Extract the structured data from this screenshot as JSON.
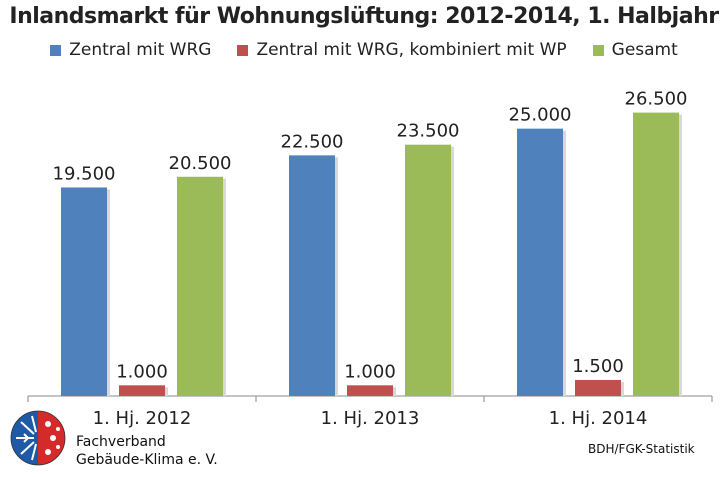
{
  "chart_data": {
    "type": "bar",
    "title": "Inlandsmarkt für Wohnungslüftung: 2012-2014, 1. Halbjahr",
    "categories": [
      "1. Hj. 2012",
      "1. Hj. 2013",
      "1. Hj. 2014"
    ],
    "series": [
      {
        "name": "Zentral mit WRG",
        "color": "#4F81BD",
        "values": [
          19500,
          22500,
          25000
        ],
        "labels": [
          "19.500",
          "22.500",
          "25.000"
        ]
      },
      {
        "name": "Zentral mit WRG, kombiniert mit WP",
        "color": "#C0504D",
        "values": [
          1000,
          1000,
          1500
        ],
        "labels": [
          "1.000",
          "1.000",
          "1.500"
        ]
      },
      {
        "name": "Gesamt",
        "color": "#9BBB59",
        "values": [
          20500,
          23500,
          26500
        ],
        "labels": [
          "20.500",
          "23.500",
          "26.500"
        ]
      }
    ],
    "ylim": [
      0,
      28800
    ],
    "grid": false,
    "legend": "top"
  },
  "footer": {
    "org_line1": "Fachverband",
    "org_line2": "Gebäude-Klima e. V.",
    "source": "BDH/FGK-Statistik"
  },
  "logo": {
    "icon": "snowflake-sun-logo-icon",
    "colors": {
      "cold": "#1E5AA8",
      "warm": "#D42A2A"
    }
  }
}
